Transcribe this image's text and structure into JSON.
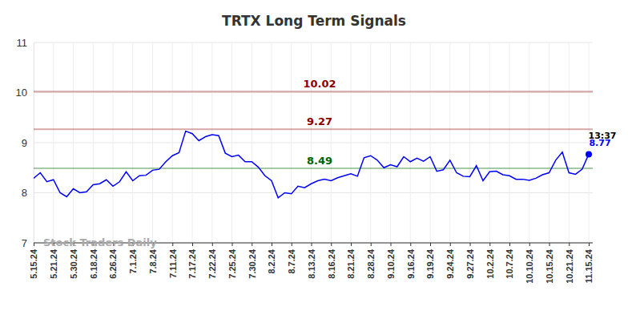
{
  "chart_data": {
    "type": "line",
    "title": "TRTX Long Term Signals",
    "color": "#0000ff",
    "marker": "last",
    "grid": true,
    "watermark": "Stock Traders Daily",
    "time_label": "13:37",
    "categories": [
      "5.15.24",
      null,
      null,
      "5.21.24",
      null,
      null,
      "5.30.24",
      null,
      null,
      "6.18.24",
      null,
      null,
      "6.26.24",
      null,
      null,
      "7.1.24",
      null,
      null,
      "7.8.24",
      null,
      null,
      "7.11.24",
      null,
      null,
      "7.17.24",
      null,
      null,
      "7.22.24",
      null,
      null,
      "7.25.24",
      null,
      null,
      "7.30.24",
      null,
      null,
      "8.2.24",
      null,
      null,
      "8.7.24",
      null,
      null,
      "8.13.24",
      null,
      null,
      "8.16.24",
      null,
      null,
      "8.21.24",
      null,
      null,
      "8.28.24",
      null,
      null,
      "9.10.24",
      null,
      null,
      "9.16.24",
      null,
      null,
      "9.19.24",
      null,
      null,
      "9.24.24",
      null,
      null,
      "9.27.24",
      null,
      null,
      "10.2.24",
      null,
      null,
      "10.7.24",
      null,
      null,
      "10.10.24",
      null,
      null,
      "10.15.24",
      null,
      null,
      "10.21.24",
      null,
      null,
      "11.15.24"
    ],
    "values": [
      8.29,
      8.4,
      8.22,
      8.26,
      8.0,
      7.92,
      8.08,
      8.0,
      8.02,
      8.16,
      8.18,
      8.26,
      8.13,
      8.22,
      8.42,
      8.24,
      8.34,
      8.35,
      8.45,
      8.47,
      8.62,
      8.74,
      8.8,
      9.23,
      9.18,
      9.04,
      9.12,
      9.16,
      9.14,
      8.79,
      8.72,
      8.75,
      8.62,
      8.62,
      8.51,
      8.34,
      8.24,
      7.9,
      8.0,
      7.98,
      8.13,
      8.1,
      8.18,
      8.24,
      8.27,
      8.24,
      8.3,
      8.34,
      8.38,
      8.33,
      8.7,
      8.74,
      8.65,
      8.5,
      8.56,
      8.52,
      8.72,
      8.62,
      8.69,
      8.63,
      8.72,
      8.43,
      8.46,
      8.65,
      8.4,
      8.33,
      8.32,
      8.54,
      8.24,
      8.42,
      8.43,
      8.36,
      8.34,
      8.27,
      8.27,
      8.25,
      8.29,
      8.36,
      8.4,
      8.65,
      8.81,
      8.4,
      8.37,
      8.47,
      8.77
    ],
    "ylim": [
      7,
      11
    ],
    "yticks": [
      7,
      8,
      9,
      10,
      11
    ],
    "reference_lines": [
      {
        "value": 10.02,
        "color": "#8b0000"
      },
      {
        "value": 9.27,
        "color": "#8b0000"
      },
      {
        "value": 8.49,
        "color": "#006400"
      }
    ]
  }
}
